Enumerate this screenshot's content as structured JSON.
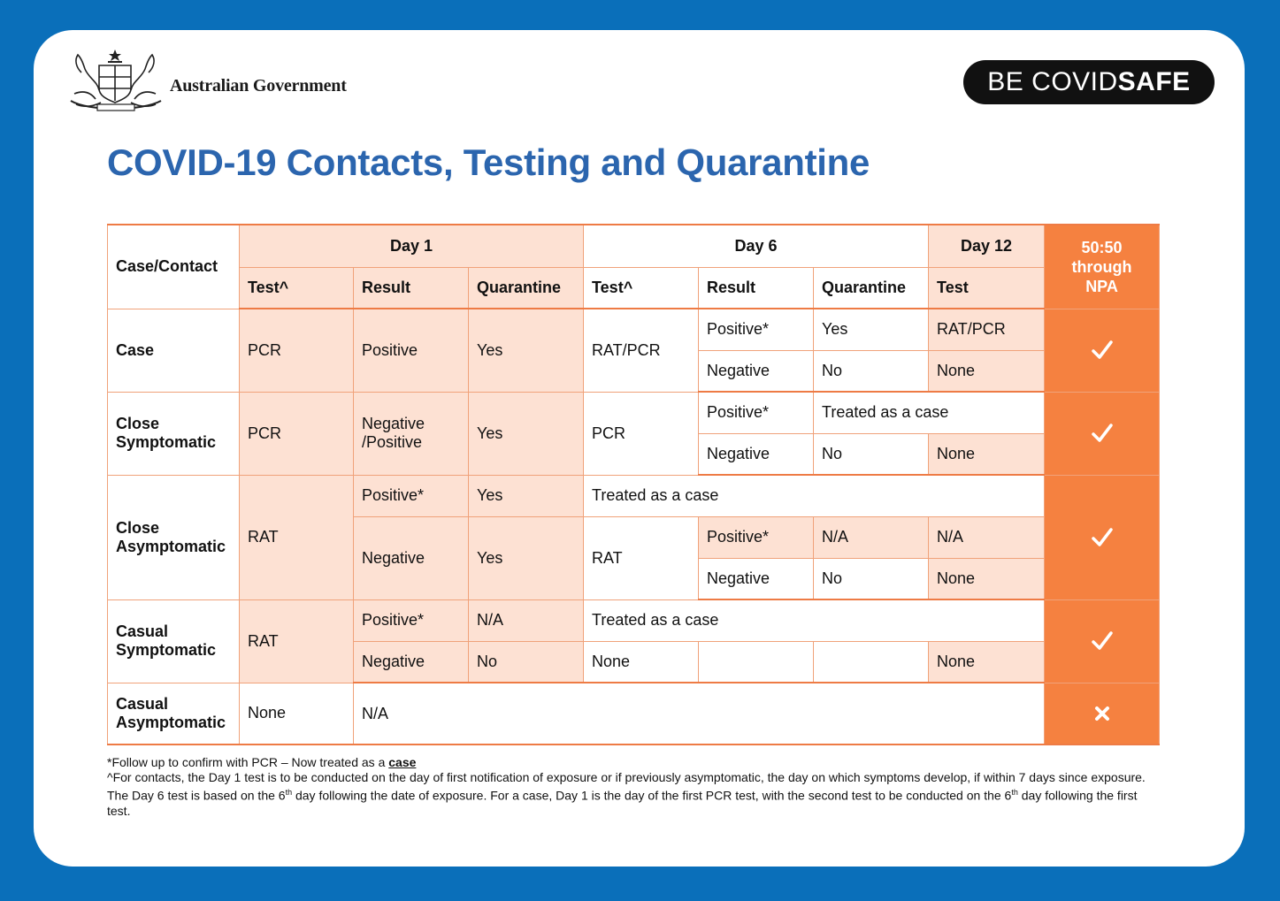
{
  "header": {
    "gov_name": "Australian Government",
    "badge_thin": "BE COVID",
    "badge_bold": "SAFE",
    "title": "COVID-19 Contacts, Testing and Quarantine"
  },
  "table": {
    "col_case": "Case/Contact",
    "day1": "Day 1",
    "day6": "Day 6",
    "day12": "Day 12",
    "npa": "50:50 through NPA",
    "sub": [
      "Test^",
      "Result",
      "Quarantine",
      "Test^",
      "Result",
      "Quarantine",
      "Test"
    ],
    "case": {
      "label": "Case",
      "d1_test": "PCR",
      "d1_result": "Positive",
      "d1_quar": "Yes",
      "d6_test": "RAT/PCR",
      "r1": [
        "Positive*",
        "Yes",
        "RAT/PCR"
      ],
      "r2": [
        "Negative",
        "No",
        "None"
      ]
    },
    "close_sym": {
      "label_a": "Close",
      "label_b": "Symptomatic",
      "d1_test": "PCR",
      "d1_result_a": "Negative",
      "d1_result_b": "/Positive",
      "d1_quar": "Yes",
      "d6_test": "PCR",
      "r1_result": "Positive*",
      "r1_treated": "Treated as a case",
      "r2": [
        "Negative",
        "No",
        "None"
      ]
    },
    "close_asym": {
      "label_a": "Close",
      "label_b": "Asymptomatic",
      "d1_test": "RAT",
      "r1_result": "Positive*",
      "r1_quar": "Yes",
      "r1_treated": "Treated as a case",
      "r2_result": "Negative",
      "r2_quar": "Yes",
      "d6_test": "RAT",
      "r2": [
        "Positive*",
        "N/A",
        "N/A"
      ],
      "r3": [
        "Negative",
        "No",
        "None"
      ]
    },
    "casual_sym": {
      "label_a": "Casual",
      "label_b": "Symptomatic",
      "d1_test": "RAT",
      "r1_result": "Positive*",
      "r1_quar": "N/A",
      "r1_treated": "Treated as a case",
      "r2_result": "Negative",
      "r2_quar": "No",
      "r2_d6": "None",
      "r2_d12": "None"
    },
    "casual_asym": {
      "label_a": "Casual",
      "label_b": "Asymptomatic",
      "d1_test": "None",
      "rest": "N/A"
    },
    "npa_marks": [
      "check",
      "check",
      "check",
      "check",
      "cross"
    ]
  },
  "footnotes": {
    "f1_text": "*Follow up to confirm with PCR – Now treated as a ",
    "f1_link": "case",
    "f2_a": "^For contacts, the Day 1 test is to be conducted on the day of first notification of exposure or if previously asymptomatic, the day on which symptoms develop, if within 7 days since exposure. The Day 6 test is based on the 6",
    "f2_sup1": "th",
    "f2_b": " day following the date of exposure. For a case, Day 1 is the day of the first PCR test, with the second test to be conducted on the 6",
    "f2_sup2": "th",
    "f2_c": " day following the first test."
  }
}
